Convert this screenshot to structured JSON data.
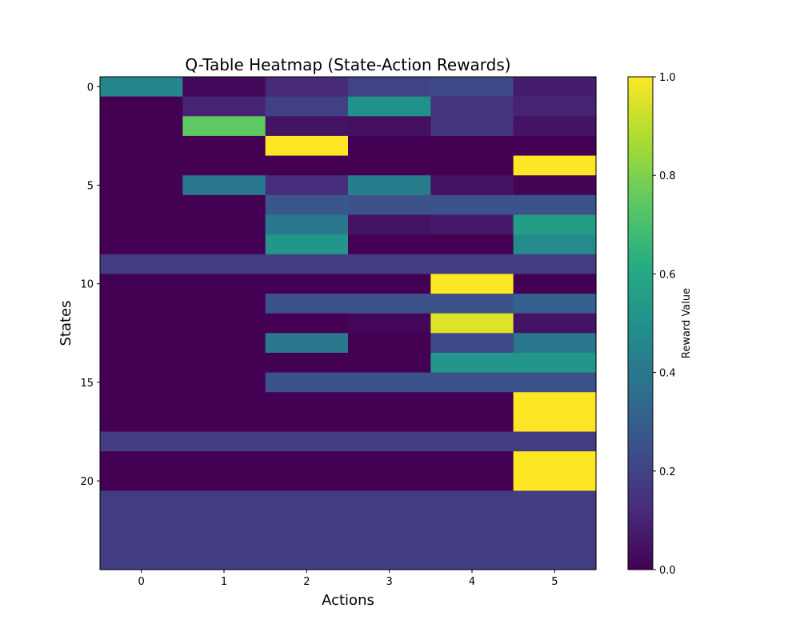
{
  "chart_data": {
    "type": "heatmap",
    "title": "Q-Table Heatmap (State-Action Rewards)",
    "xlabel": "Actions",
    "ylabel": "States",
    "colorbar_label": "Reward Value",
    "n_states": 25,
    "n_actions": 6,
    "x_ticks": [
      0,
      1,
      2,
      3,
      4,
      5
    ],
    "y_ticks": [
      0,
      5,
      10,
      15,
      20
    ],
    "colorbar_ticks": [
      "0.0",
      "0.2",
      "0.4",
      "0.6",
      "0.8",
      "1.0"
    ],
    "vmin": 0.0,
    "vmax": 1.0,
    "colormap": "viridis",
    "values": [
      [
        0.45,
        0.02,
        0.12,
        0.2,
        0.22,
        0.08
      ],
      [
        0.0,
        0.1,
        0.19,
        0.5,
        0.15,
        0.1
      ],
      [
        0.0,
        0.75,
        0.05,
        0.04,
        0.15,
        0.05
      ],
      [
        0.0,
        0.0,
        1.0,
        0.0,
        0.0,
        0.0
      ],
      [
        0.0,
        0.0,
        0.0,
        0.0,
        0.0,
        1.0
      ],
      [
        0.0,
        0.4,
        0.13,
        0.42,
        0.05,
        0.01
      ],
      [
        0.0,
        0.0,
        0.27,
        0.25,
        0.25,
        0.25
      ],
      [
        0.0,
        0.0,
        0.4,
        0.05,
        0.07,
        0.55
      ],
      [
        0.0,
        0.0,
        0.52,
        0.0,
        0.0,
        0.47
      ],
      [
        0.18,
        0.18,
        0.18,
        0.18,
        0.18,
        0.18
      ],
      [
        0.0,
        0.0,
        0.0,
        0.0,
        1.0,
        0.0
      ],
      [
        0.0,
        0.0,
        0.25,
        0.25,
        0.25,
        0.3
      ],
      [
        0.0,
        0.0,
        0.0,
        0.02,
        0.95,
        0.05
      ],
      [
        0.0,
        0.0,
        0.4,
        0.0,
        0.22,
        0.4
      ],
      [
        0.0,
        0.0,
        0.0,
        0.0,
        0.52,
        0.52
      ],
      [
        0.0,
        0.0,
        0.25,
        0.25,
        0.25,
        0.25
      ],
      [
        0.0,
        0.0,
        0.0,
        0.0,
        0.0,
        1.0
      ],
      [
        0.0,
        0.0,
        0.0,
        0.0,
        0.0,
        1.0
      ],
      [
        0.18,
        0.18,
        0.18,
        0.18,
        0.18,
        0.18
      ],
      [
        0.0,
        0.0,
        0.0,
        0.0,
        0.0,
        1.0
      ],
      [
        0.0,
        0.0,
        0.0,
        0.0,
        0.0,
        1.0
      ],
      [
        0.18,
        0.18,
        0.18,
        0.18,
        0.18,
        0.18
      ],
      [
        0.18,
        0.18,
        0.18,
        0.18,
        0.18,
        0.18
      ],
      [
        0.18,
        0.18,
        0.18,
        0.18,
        0.18,
        0.18
      ],
      [
        0.18,
        0.18,
        0.18,
        0.18,
        0.18,
        0.18
      ]
    ]
  }
}
